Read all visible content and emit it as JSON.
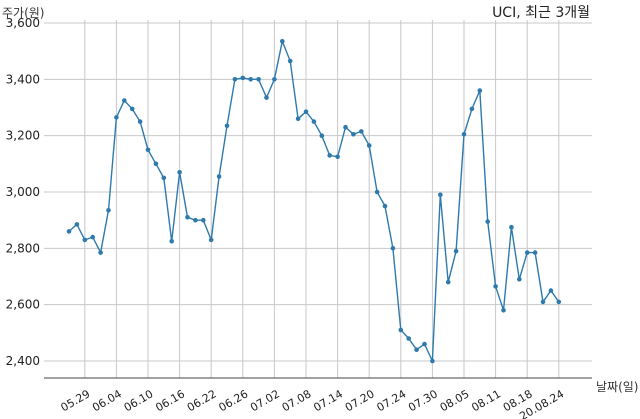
{
  "chart_data": {
    "type": "line",
    "title": "UCI, 최근 3개월",
    "ylabel": "주가(원)",
    "xlabel": "날짜(일)",
    "ylim": [
      2400,
      3600
    ],
    "yticks": [
      2400,
      2600,
      2800,
      3000,
      3200,
      3400,
      3600
    ],
    "ytick_labels": [
      "2,400",
      "2,600",
      "2,800",
      "3,000",
      "3,200",
      "3,400",
      "3,600"
    ],
    "xtick_labels": [
      "05.29",
      "06.04",
      "06.10",
      "06.16",
      "06.22",
      "06.26",
      "07.02",
      "07.08",
      "07.14",
      "07.20",
      "07.24",
      "07.30",
      "08.05",
      "08.11",
      "08.18",
      "20.08.24"
    ],
    "xtick_index": [
      2,
      6,
      10,
      14,
      18,
      22,
      26,
      30,
      34,
      38,
      42,
      46,
      50,
      54,
      58,
      62
    ],
    "grid": true,
    "line_color": "#2e7aad",
    "series": [
      {
        "values": [
          2860,
          2885,
          2830,
          2840,
          2785,
          2935,
          3265,
          3325,
          3295,
          3250,
          3150,
          3100,
          3050,
          2825,
          3070,
          2910,
          2900,
          2900,
          2830,
          3055,
          3235,
          3400,
          3405,
          3400,
          3400,
          3335,
          3400,
          3535,
          3465,
          3260,
          3285,
          3250,
          3200,
          3130,
          3125,
          3230,
          3205,
          3215,
          3165,
          3000,
          2950,
          2800,
          2510,
          2480,
          2440,
          2460,
          2400,
          2990,
          2680,
          2790,
          3205,
          3295,
          3360,
          2895,
          2665,
          2580,
          2875,
          2690,
          2785,
          2785,
          2610,
          2650,
          2610
        ]
      }
    ]
  }
}
